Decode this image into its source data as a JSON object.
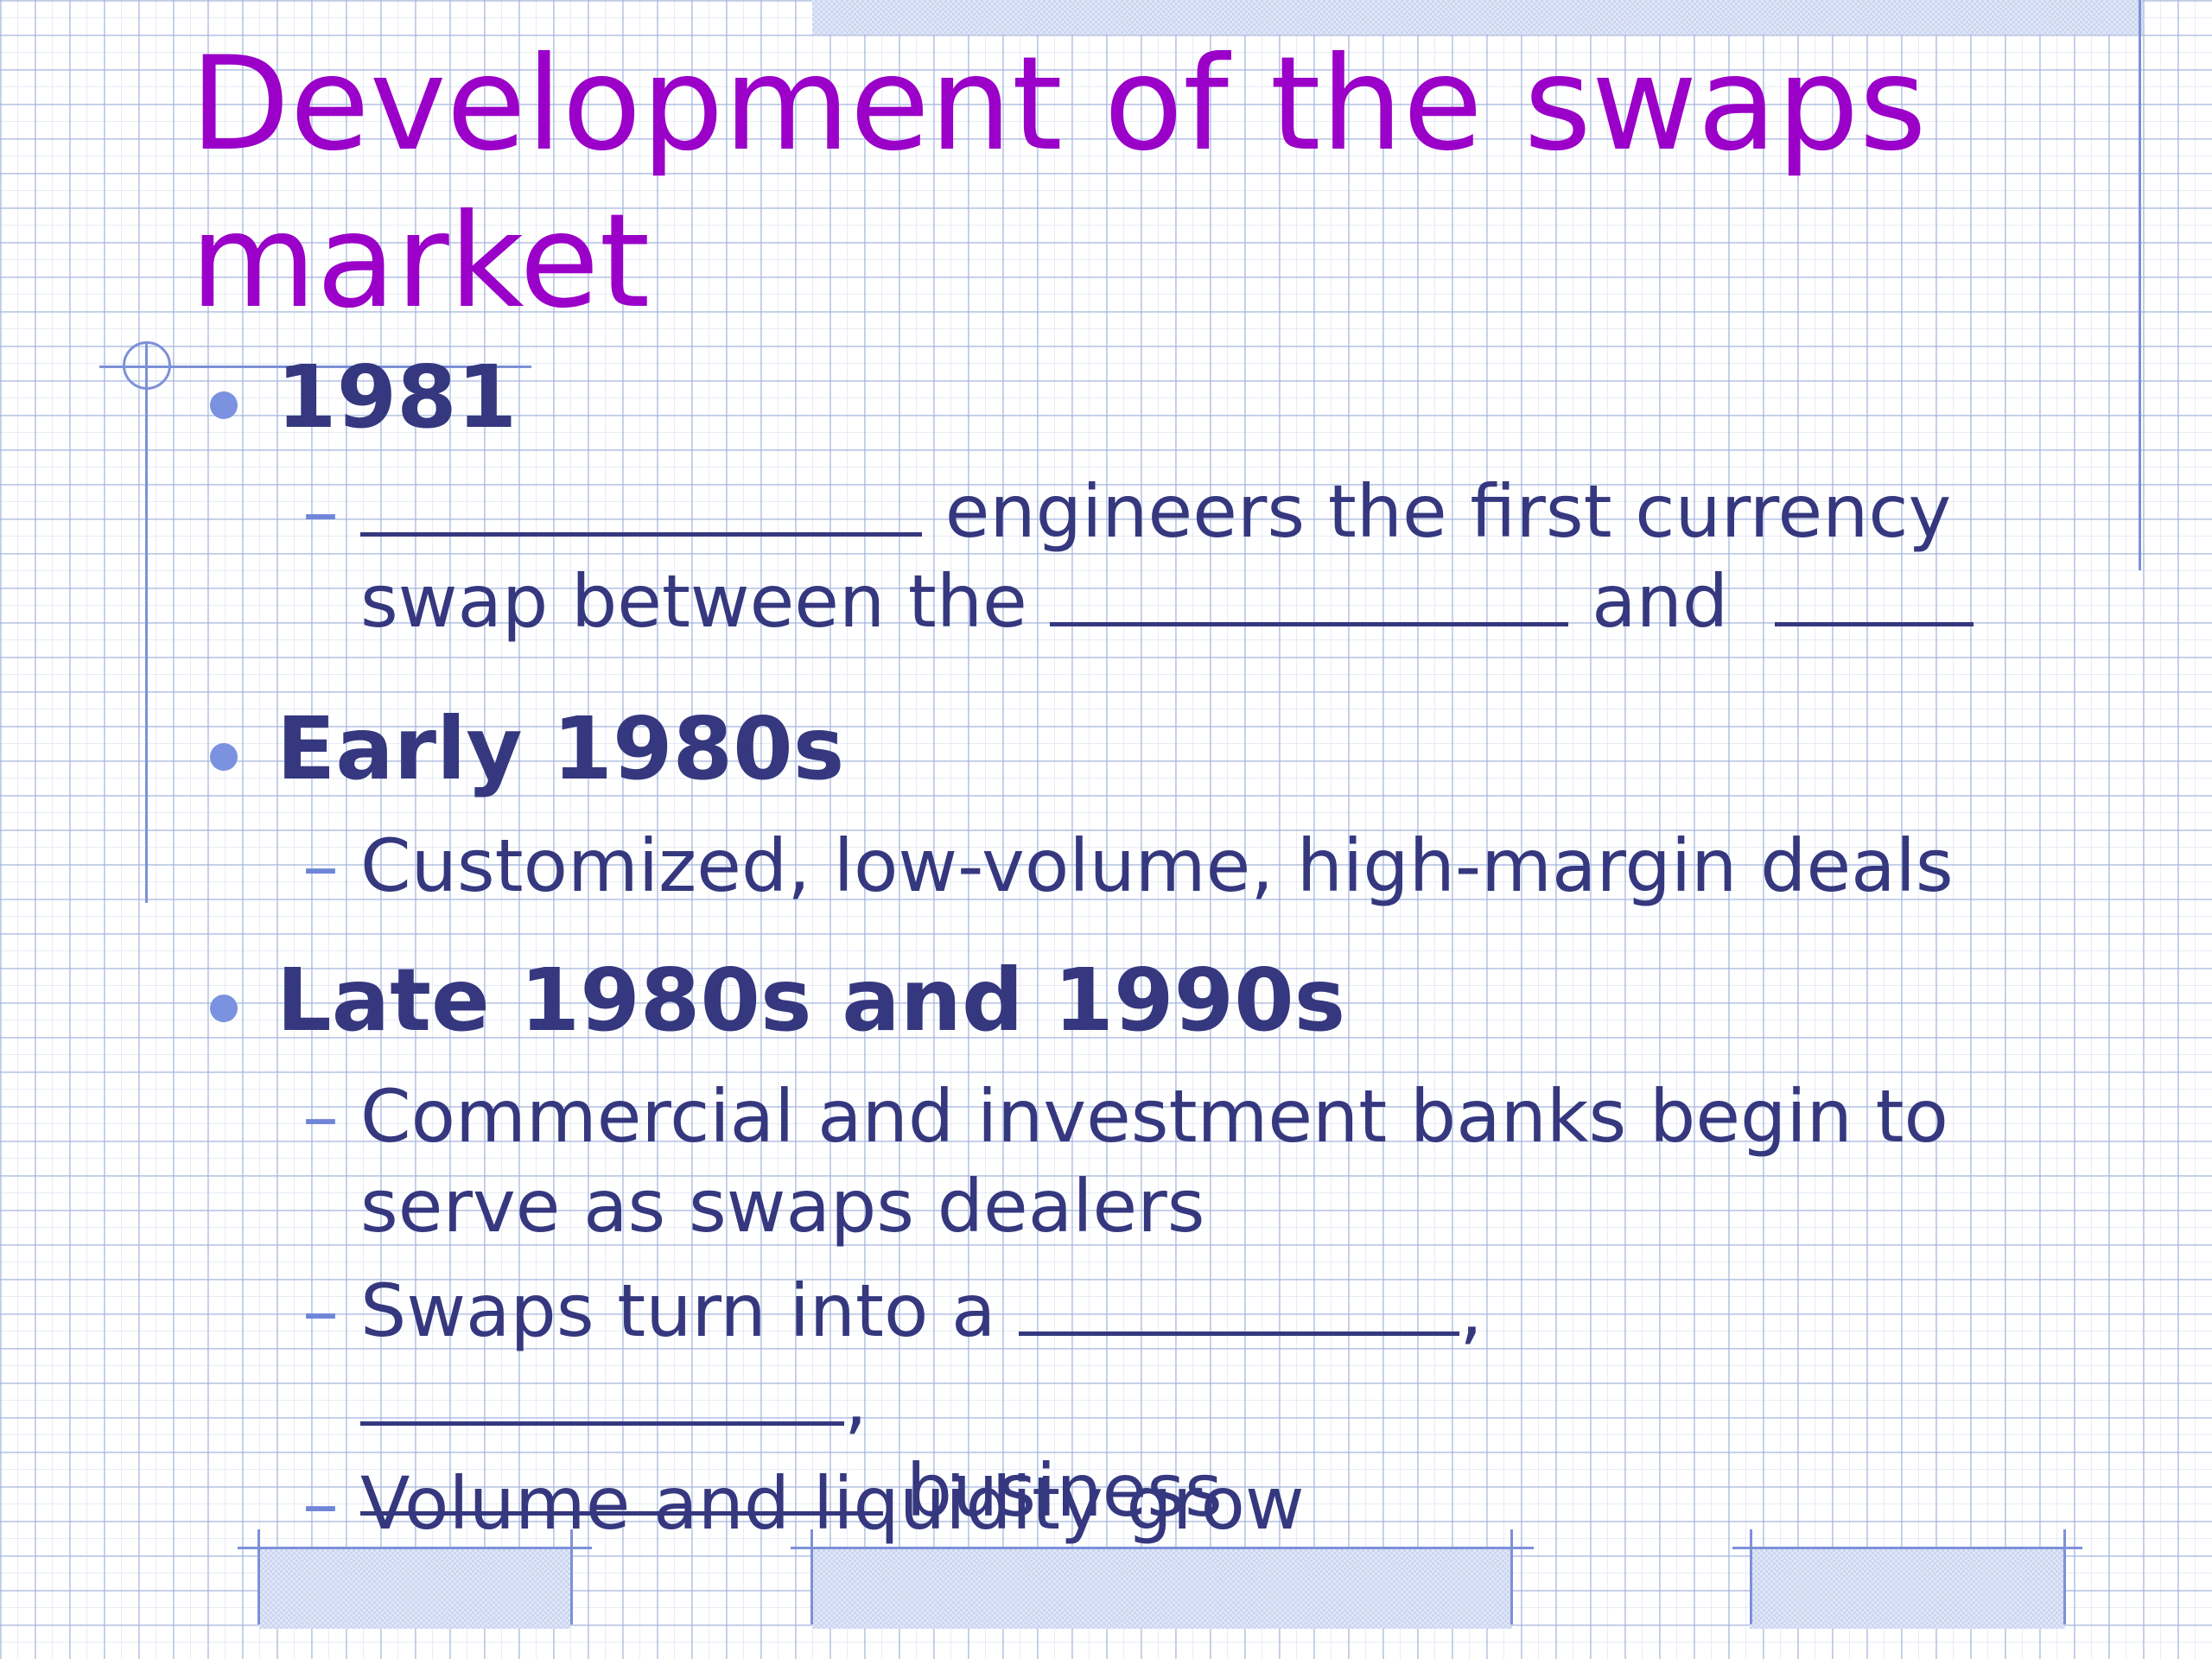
{
  "slide": {
    "title": "Development of the swaps market",
    "bullets": [
      {
        "heading": "1981",
        "subitems": [
          {
            "parts": [
              "",
              " engineers the first currency swap between the ",
              " and ",
              ""
            ]
          }
        ]
      },
      {
        "heading": "Early 1980s",
        "subitems": [
          {
            "text": "Customized, low-volume, high-margin deals"
          }
        ]
      },
      {
        "heading": "Late 1980s and 1990s",
        "subitems": [
          {
            "text": "Commercial and investment banks begin to serve as swaps dealers"
          },
          {
            "parts": [
              "Swaps turn into a ",
              ", ",
              ",",
              " business"
            ]
          },
          {
            "text": "Volume and liquidity grow"
          }
        ]
      }
    ]
  },
  "colors": {
    "title": "#9a00c8",
    "body_text": "#35387e",
    "bullet": "#7b92e0",
    "grid": "#a0b2dc",
    "accent_lines": "#7d91d8"
  }
}
